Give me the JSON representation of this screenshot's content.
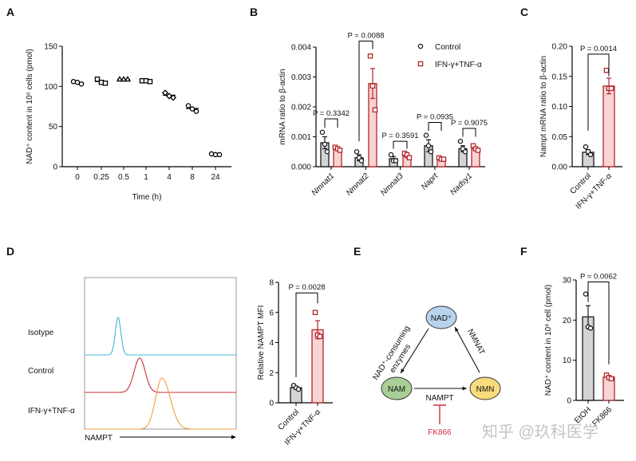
{
  "panel_letters": [
    "A",
    "B",
    "C",
    "D",
    "E",
    "F"
  ],
  "colors": {
    "control_fill": "#d4d4d4",
    "control_stroke": "#1a1a1a",
    "treat_fill": "#f8d4d4",
    "treat_stroke": "#b3262a",
    "isotype": "#3cb8cf",
    "control_hist": "#c8303a",
    "treat_hist": "#f0a040",
    "inhibitor": "#d2323c",
    "nad_node": "#b8d3ee",
    "nam_node": "#a9cf96",
    "nmn_node": "#f8dc7c"
  },
  "chart_data": [
    {
      "id": "A",
      "type": "scatter",
      "xlabel": "Time (h)",
      "ylabel": "NAD⁺ content in 10⁶ cells (pmol)",
      "ylim": [
        0,
        150
      ],
      "yticks": [
        {
          "v": 0,
          "label": "0"
        },
        {
          "v": 50,
          "label": "50"
        },
        {
          "v": 100,
          "label": "100"
        },
        {
          "v": 150,
          "label": "150"
        }
      ],
      "categories": [
        "0",
        "0.25",
        "0.5",
        "1",
        "4",
        "8",
        "24"
      ],
      "markers": [
        "circle",
        "square",
        "triangle",
        "square",
        "diamond",
        "circle",
        "circle"
      ],
      "points": [
        [
          106,
          105,
          103
        ],
        [
          109,
          105,
          104
        ],
        [
          109,
          109,
          109
        ],
        [
          107,
          107,
          106
        ],
        [
          92,
          88,
          86
        ],
        [
          76,
          72,
          69
        ],
        [
          16,
          15,
          15
        ]
      ],
      "means": [
        105,
        106,
        109,
        107,
        89,
        72.5,
        15.5
      ]
    },
    {
      "id": "B",
      "type": "bar",
      "ylabel": "mRNA ratio to β-actin",
      "ylim": [
        0,
        0.004
      ],
      "yticks": [
        {
          "v": 0,
          "label": "0.000"
        },
        {
          "v": 0.001,
          "label": "0.001"
        },
        {
          "v": 0.002,
          "label": "0.002"
        },
        {
          "v": 0.003,
          "label": "0.003"
        },
        {
          "v": 0.004,
          "label": "0.004"
        }
      ],
      "categories": [
        "Nmnat1",
        "Nmnat2",
        "Nmnat3",
        "Naprt",
        "Nadsy1"
      ],
      "legend": {
        "position": "top-right",
        "entries": [
          "Control",
          "IFN-γ+TNF-α"
        ]
      },
      "series": [
        {
          "name": "Control",
          "style": "control",
          "means": [
            0.0008,
            0.0003,
            0.00027,
            0.0007,
            0.0006
          ],
          "sem": [
            0.0002,
            0.0001,
            7e-05,
            0.0002,
            0.0001
          ],
          "points": [
            [
              0.00115,
              0.00075,
              0.0005
            ],
            [
              0.0005,
              0.0003,
              0.0002
            ],
            [
              0.0004,
              0.0002,
              0.0002
            ],
            [
              0.00105,
              0.0007,
              0.0005
            ],
            [
              0.00085,
              0.0006,
              0.0005
            ]
          ]
        },
        {
          "name": "IFN-γ+TNF-α",
          "style": "treat",
          "means": [
            0.0006,
            0.00278,
            0.00035,
            0.00025,
            0.0006
          ],
          "sem": [
            5e-05,
            0.0005,
            5e-05,
            2e-05,
            5e-05
          ],
          "points": [
            [
              0.00065,
              0.0006,
              0.00055
            ],
            [
              0.0037,
              0.0027,
              0.0019
            ],
            [
              0.00045,
              0.0004,
              0.0003
            ],
            [
              0.0003,
              0.00025,
              0.00025
            ],
            [
              0.0007,
              0.0006,
              0.00055
            ]
          ]
        }
      ],
      "pvalues": [
        {
          "label": "P = 0.3342",
          "group": 0,
          "y": 0.0016,
          "left": 0.0013,
          "right": 0.0013
        },
        {
          "label": "P = 0.0088",
          "group": 1,
          "y": 0.0042,
          "left": 0.00085,
          "right": 0.00393
        },
        {
          "label": "P = 0.3591",
          "group": 2,
          "y": 0.00085,
          "left": 0.0006,
          "right": 0.0006
        },
        {
          "label": "P = 0.0935",
          "group": 3,
          "y": 0.00148,
          "left": 0.0012,
          "right": 0.0012
        },
        {
          "label": "P = 0.9075",
          "group": 4,
          "y": 0.00128,
          "left": 0.001,
          "right": 0.001
        }
      ]
    },
    {
      "id": "C",
      "type": "bar",
      "ylabel": "Nampt mRNA ratio to β-actin",
      "ylim": [
        0,
        0.2
      ],
      "yticks": [
        {
          "v": 0,
          "label": "0.00"
        },
        {
          "v": 0.05,
          "label": "0.05"
        },
        {
          "v": 0.1,
          "label": "0.10"
        },
        {
          "v": 0.15,
          "label": "0.15"
        },
        {
          "v": 0.2,
          "label": "0.20"
        }
      ],
      "bars": [
        {
          "label": "Control",
          "style": "control",
          "mean": 0.024,
          "sem": 0.004,
          "points": [
            0.033,
            0.025,
            0.02
          ]
        },
        {
          "label": "IFN-γ+TNF-α",
          "style": "treat",
          "mean": 0.134,
          "sem": 0.013,
          "points": [
            0.16,
            0.13,
            0.13
          ]
        }
      ],
      "pvalues": [
        {
          "label": "P = 0.0014",
          "y": 0.187,
          "left": 0.06,
          "right": 0.15
        }
      ]
    },
    {
      "id": "D-histogram",
      "type": "histogram",
      "xlabel": "NAMPT",
      "series": [
        {
          "name": "Isotype",
          "color_key": "isotype"
        },
        {
          "name": "Control",
          "color_key": "control_hist"
        },
        {
          "name": "IFN-γ+TNF-α",
          "color_key": "treat_hist"
        }
      ]
    },
    {
      "id": "D-bar",
      "type": "bar",
      "ylabel": "Relative NAMPT MFI",
      "ylim": [
        0,
        8
      ],
      "yticks": [
        {
          "v": 0,
          "label": "0"
        },
        {
          "v": 2,
          "label": "2"
        },
        {
          "v": 4,
          "label": "4"
        },
        {
          "v": 6,
          "label": "6"
        },
        {
          "v": 8,
          "label": "8"
        }
      ],
      "bars": [
        {
          "label": "Control",
          "style": "control",
          "mean": 1.0,
          "sem": 0.1,
          "points": [
            1.15,
            1.0,
            0.9
          ]
        },
        {
          "label": "IFN-γ+TNF-α",
          "style": "treat",
          "mean": 4.85,
          "sem": 0.6,
          "points": [
            6.0,
            4.5,
            4.4
          ]
        }
      ],
      "pvalues": [
        {
          "label": "P = 0.0028",
          "y": 7.3,
          "left": 1.7,
          "right": 6.6
        }
      ]
    },
    {
      "id": "F",
      "type": "bar",
      "ylabel": "NAD⁺ content in 10⁶ cell (pmol)",
      "ylim": [
        0,
        30
      ],
      "yticks": [
        {
          "v": 0,
          "label": "0"
        },
        {
          "v": 10,
          "label": "10"
        },
        {
          "v": 20,
          "label": "20"
        },
        {
          "v": 30,
          "label": "30"
        }
      ],
      "bars": [
        {
          "label": "EtOH",
          "style": "control",
          "mean": 20.8,
          "sem": 2.8,
          "points": [
            26.5,
            18.3,
            18.0
          ]
        },
        {
          "label": "FK866",
          "style": "treat",
          "mean": 5.8,
          "sem": 0.4,
          "points": [
            6.3,
            5.7,
            5.4
          ]
        }
      ],
      "pvalues": [
        {
          "label": "P = 0.0062",
          "y": 29.5,
          "left": 24.5,
          "right": 9
        }
      ]
    }
  ],
  "diagram": {
    "nodes": {
      "nad": "NAD⁺",
      "nam": "NAM",
      "nmn": "NMN"
    },
    "edges": {
      "consuming": "NAD⁺-consuming",
      "consuming2": "enzymes",
      "nmnat": "NMNAT",
      "nampt": "NAMPT"
    },
    "inhibitor": "FK866"
  },
  "watermark": "知乎 @玖科医学"
}
